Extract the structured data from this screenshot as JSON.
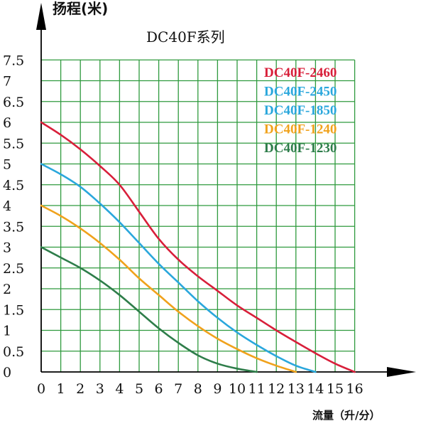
{
  "chart_data": {
    "type": "line",
    "title": "DC40F系列",
    "ylabel": "扬程(米)",
    "xlabel": "流量（升/分）",
    "xlim": [
      0,
      16
    ],
    "ylim": [
      0,
      7.5
    ],
    "grid": true,
    "legend_position": "top-right",
    "x_ticks": [
      "0",
      "1",
      "2",
      "3",
      "4",
      "5",
      "6",
      "7",
      "8",
      "9",
      "10",
      "11",
      "12",
      "13",
      "14",
      "15",
      "16"
    ],
    "y_ticks": [
      "0",
      "0.5",
      "1",
      "1.5",
      "2",
      "2.5",
      "3",
      "3.5",
      "4",
      "4.5",
      "5",
      "5.5",
      "6",
      "6.5",
      "7",
      "7.5"
    ],
    "series": [
      {
        "name": "DC40F-2460",
        "color": "#d81f3a",
        "points": [
          [
            0,
            6.0
          ],
          [
            1,
            5.7
          ],
          [
            2,
            5.35
          ],
          [
            3,
            4.95
          ],
          [
            4,
            4.5
          ],
          [
            5,
            3.85
          ],
          [
            6,
            3.2
          ],
          [
            7,
            2.7
          ],
          [
            8,
            2.3
          ],
          [
            9,
            1.95
          ],
          [
            10,
            1.6
          ],
          [
            11,
            1.3
          ],
          [
            12,
            1.0
          ],
          [
            13,
            0.72
          ],
          [
            14,
            0.45
          ],
          [
            15,
            0.2
          ],
          [
            16,
            0.0
          ]
        ]
      },
      {
        "name": "DC40F-2450",
        "color": "#2aa7dc",
        "points": [
          [
            0,
            5.0
          ],
          [
            1,
            4.75
          ],
          [
            2,
            4.45
          ],
          [
            3,
            4.05
          ],
          [
            4,
            3.6
          ],
          [
            5,
            3.1
          ],
          [
            6,
            2.6
          ],
          [
            7,
            2.15
          ],
          [
            8,
            1.7
          ],
          [
            9,
            1.3
          ],
          [
            10,
            0.95
          ],
          [
            11,
            0.65
          ],
          [
            12,
            0.38
          ],
          [
            13,
            0.15
          ],
          [
            14,
            0.0
          ]
        ]
      },
      {
        "name": "DC40F-1850",
        "color": "#2aa7dc",
        "points": []
      },
      {
        "name": "DC40F-1240",
        "color": "#f0a21c",
        "points": [
          [
            0,
            4.0
          ],
          [
            1,
            3.75
          ],
          [
            2,
            3.45
          ],
          [
            3,
            3.1
          ],
          [
            4,
            2.7
          ],
          [
            5,
            2.25
          ],
          [
            6,
            1.85
          ],
          [
            7,
            1.45
          ],
          [
            8,
            1.1
          ],
          [
            9,
            0.8
          ],
          [
            10,
            0.55
          ],
          [
            11,
            0.33
          ],
          [
            12,
            0.15
          ],
          [
            13,
            0.0
          ]
        ]
      },
      {
        "name": "DC40F-1230",
        "color": "#2e7d4a",
        "points": [
          [
            0,
            3.0
          ],
          [
            1,
            2.75
          ],
          [
            2,
            2.5
          ],
          [
            3,
            2.2
          ],
          [
            4,
            1.85
          ],
          [
            5,
            1.45
          ],
          [
            6,
            1.05
          ],
          [
            7,
            0.7
          ],
          [
            8,
            0.4
          ],
          [
            9,
            0.2
          ],
          [
            10,
            0.08
          ],
          [
            11,
            0.0
          ]
        ]
      }
    ]
  }
}
